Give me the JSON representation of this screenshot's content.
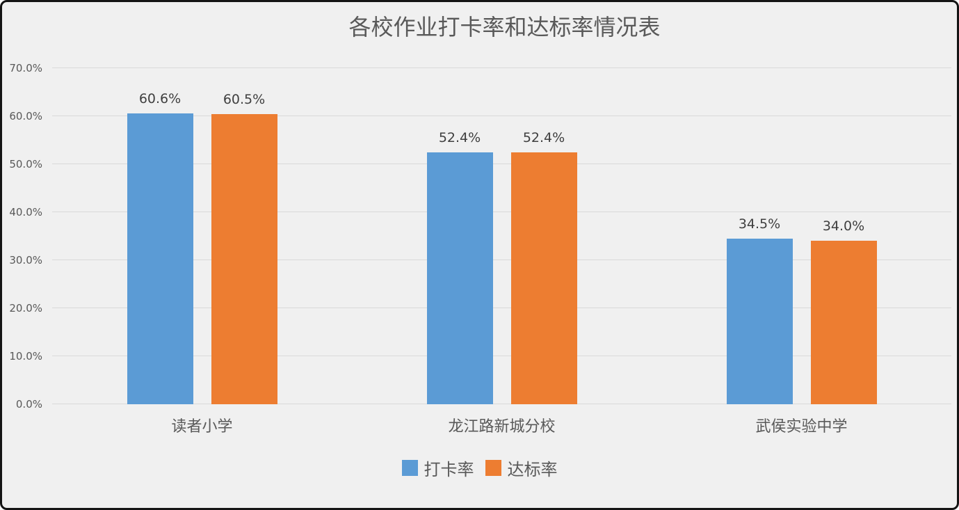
{
  "chart_data": {
    "type": "bar",
    "title": "各校作业打卡率和达标率情况表",
    "categories": [
      "读者小学",
      "龙江路新城分校",
      "武侯实验中学"
    ],
    "series": [
      {
        "name": "打卡率",
        "color": "#5B9BD5",
        "values": [
          60.6,
          52.4,
          34.5
        ]
      },
      {
        "name": "达标率",
        "color": "#ED7D31",
        "values": [
          60.5,
          52.4,
          34.0
        ]
      }
    ],
    "data_labels": [
      [
        "60.6%",
        "52.4%",
        "34.5%"
      ],
      [
        "60.5%",
        "52.4%",
        "34.0%"
      ]
    ],
    "ylim": [
      0,
      70
    ],
    "ytick_step": 10,
    "yticks": [
      "0.0%",
      "10.0%",
      "20.0%",
      "30.0%",
      "40.0%",
      "50.0%",
      "60.0%",
      "70.0%"
    ],
    "grid": "horizontal",
    "legend_position": "bottom",
    "background_color": "#f0f0f0",
    "gridline_color": "#d9d9d9",
    "text_color": "#595959"
  }
}
